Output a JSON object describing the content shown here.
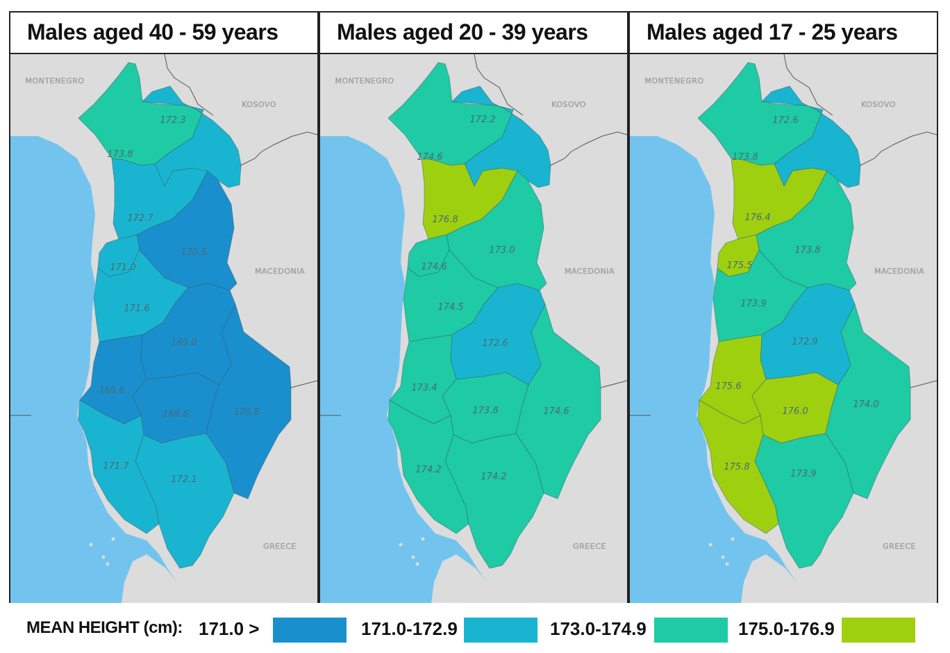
{
  "panels": [
    {
      "title": "Males aged 40 - 59 years",
      "regions": {
        "north": {
          "value": "173.8",
          "bin": 2
        },
        "northeast": {
          "value": "172.3",
          "bin": 1
        },
        "shkoder_south": {
          "value": "172.7",
          "bin": 1
        },
        "dibra": {
          "value": "170.5",
          "bin": 0
        },
        "lezhe": {
          "value": "171.0",
          "bin": 1
        },
        "durres": {
          "value": "171.6",
          "bin": 1
        },
        "elbasan": {
          "value": "169.0",
          "bin": 0
        },
        "fier": {
          "value": "169.6",
          "bin": 0
        },
        "berat": {
          "value": "169.6",
          "bin": 0
        },
        "korce": {
          "value": "170.8",
          "bin": 0
        },
        "vlore": {
          "value": "171.7",
          "bin": 1
        },
        "gjirokaster": {
          "value": "172.1",
          "bin": 1
        }
      }
    },
    {
      "title": "Males aged 20 - 39 years",
      "regions": {
        "north": {
          "value": "174.6",
          "bin": 2
        },
        "northeast": {
          "value": "172.2",
          "bin": 1
        },
        "shkoder_south": {
          "value": "176.8",
          "bin": 3
        },
        "dibra": {
          "value": "173.0",
          "bin": 2
        },
        "lezhe": {
          "value": "174.6",
          "bin": 2
        },
        "durres": {
          "value": "174.5",
          "bin": 2
        },
        "elbasan": {
          "value": "172.6",
          "bin": 1
        },
        "fier": {
          "value": "173.4",
          "bin": 2
        },
        "berat": {
          "value": "173.8",
          "bin": 2
        },
        "korce": {
          "value": "174.6",
          "bin": 2
        },
        "vlore": {
          "value": "174.2",
          "bin": 2
        },
        "gjirokaster": {
          "value": "174.2",
          "bin": 2
        }
      }
    },
    {
      "title": "Males aged 17 - 25 years",
      "regions": {
        "north": {
          "value": "173.8",
          "bin": 2
        },
        "northeast": {
          "value": "172.6",
          "bin": 1
        },
        "shkoder_south": {
          "value": "176.4",
          "bin": 3
        },
        "dibra": {
          "value": "173.8",
          "bin": 2
        },
        "lezhe": {
          "value": "175.5",
          "bin": 3
        },
        "durres": {
          "value": "173.9",
          "bin": 2
        },
        "elbasan": {
          "value": "172.9",
          "bin": 1
        },
        "fier": {
          "value": "175.6",
          "bin": 3
        },
        "berat": {
          "value": "176.0",
          "bin": 3
        },
        "korce": {
          "value": "174.0",
          "bin": 2
        },
        "vlore": {
          "value": "175.8",
          "bin": 3
        },
        "gjirokaster": {
          "value": "173.9",
          "bin": 2
        }
      }
    }
  ],
  "countries": {
    "montenegro": "MONTENEGRO",
    "kosovo": "KOSOVO",
    "macedonia": "MACEDONIA",
    "greece": "GREECE"
  },
  "legend": {
    "title": "MEAN HEIGHT (cm):",
    "bins": [
      {
        "label": "171.0 >",
        "color": "#1a8fce"
      },
      {
        "label": "171.0-172.9",
        "color": "#19b5d0"
      },
      {
        "label": "173.0-174.9",
        "color": "#1ecba4"
      },
      {
        "label": "175.0-176.9",
        "color": "#9fd010"
      }
    ]
  },
  "colors": {
    "sea": "#72c4ee",
    "land": "#dcdcdc",
    "border_line": "#555555"
  }
}
